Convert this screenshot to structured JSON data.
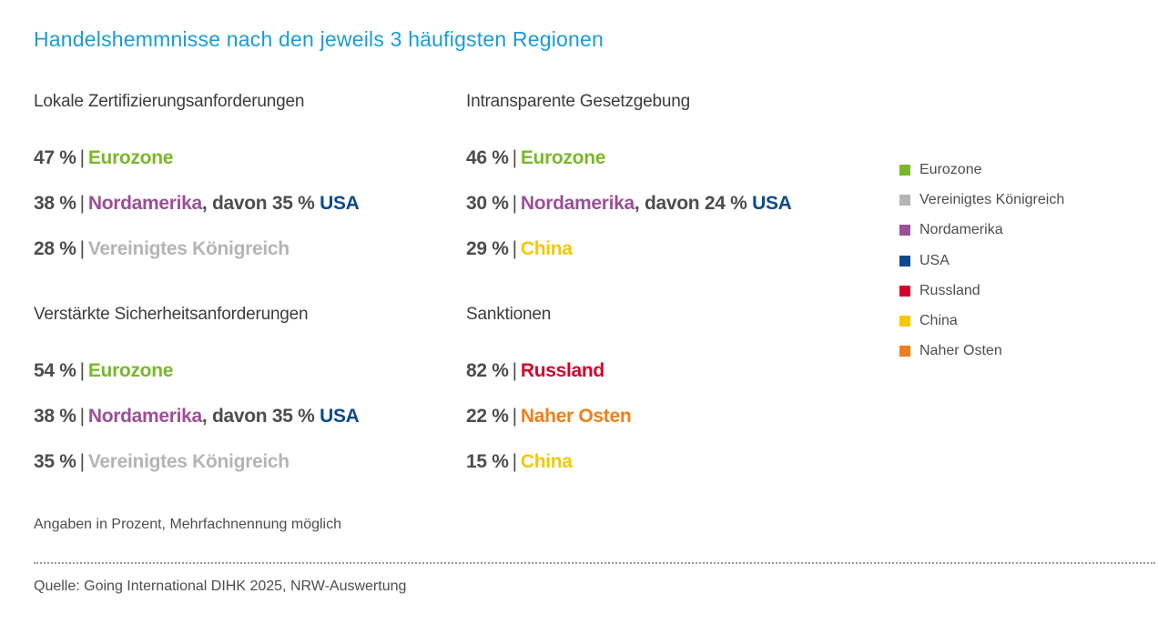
{
  "title": "Handelshemmnisse nach den jeweils 3 häufigsten Regionen",
  "colors": {
    "Eurozone": "#7ab829",
    "Vereinigtes Königreich": "#b4b4b4",
    "Nordamerika": "#9b4f96",
    "USA": "#0d4a8a",
    "Russland": "#d4002a",
    "China": "#f5c800",
    "Naher Osten": "#ee7f1a"
  },
  "chart_data": {
    "type": "table",
    "title": "Handelshemmnisse nach den jeweils 3 häufigsten Regionen",
    "unit": "%",
    "categories": [
      {
        "name": "Lokale Zertifizierungsanforderungen",
        "entries": [
          {
            "value": 47,
            "value_label": "47 %",
            "region": "Eurozone"
          },
          {
            "value": 38,
            "value_label": "38 %",
            "region": "Nordamerika",
            "sub_text": ", davon 35 %",
            "sub_value": 35,
            "sub_region": "USA"
          },
          {
            "value": 28,
            "value_label": "28 %",
            "region": "Vereinigtes Königreich"
          }
        ]
      },
      {
        "name": "Intransparente Gesetzgebung",
        "entries": [
          {
            "value": 46,
            "value_label": "46 %",
            "region": "Eurozone"
          },
          {
            "value": 30,
            "value_label": "30 %",
            "region": "Nordamerika",
            "sub_text": ", davon 24 %",
            "sub_value": 24,
            "sub_region": "USA"
          },
          {
            "value": 29,
            "value_label": "29 %",
            "region": "China"
          }
        ]
      },
      {
        "name": "Verstärkte Sicherheitsanforderungen",
        "entries": [
          {
            "value": 54,
            "value_label": "54 %",
            "region": "Eurozone"
          },
          {
            "value": 38,
            "value_label": "38 %",
            "region": "Nordamerika",
            "sub_text": ", davon 35 %",
            "sub_value": 35,
            "sub_region": "USA"
          },
          {
            "value": 35,
            "value_label": "35 %",
            "region": "Vereinigtes Königreich"
          }
        ]
      },
      {
        "name": "Sanktionen",
        "entries": [
          {
            "value": 82,
            "value_label": "82 %",
            "region": "Russland"
          },
          {
            "value": 22,
            "value_label": "22 %",
            "region": "Naher Osten"
          },
          {
            "value": 15,
            "value_label": "15 %",
            "region": "China"
          }
        ]
      }
    ],
    "legend": [
      "Eurozone",
      "Vereinigtes Königreich",
      "Nordamerika",
      "USA",
      "Russland",
      "China",
      "Naher Osten"
    ],
    "legend_position": "right"
  },
  "separator": "|",
  "note": "Angaben in Prozent, Mehrfachnennung möglich",
  "source": "Quelle: Going International DIHK 2025, NRW-Auswertung"
}
